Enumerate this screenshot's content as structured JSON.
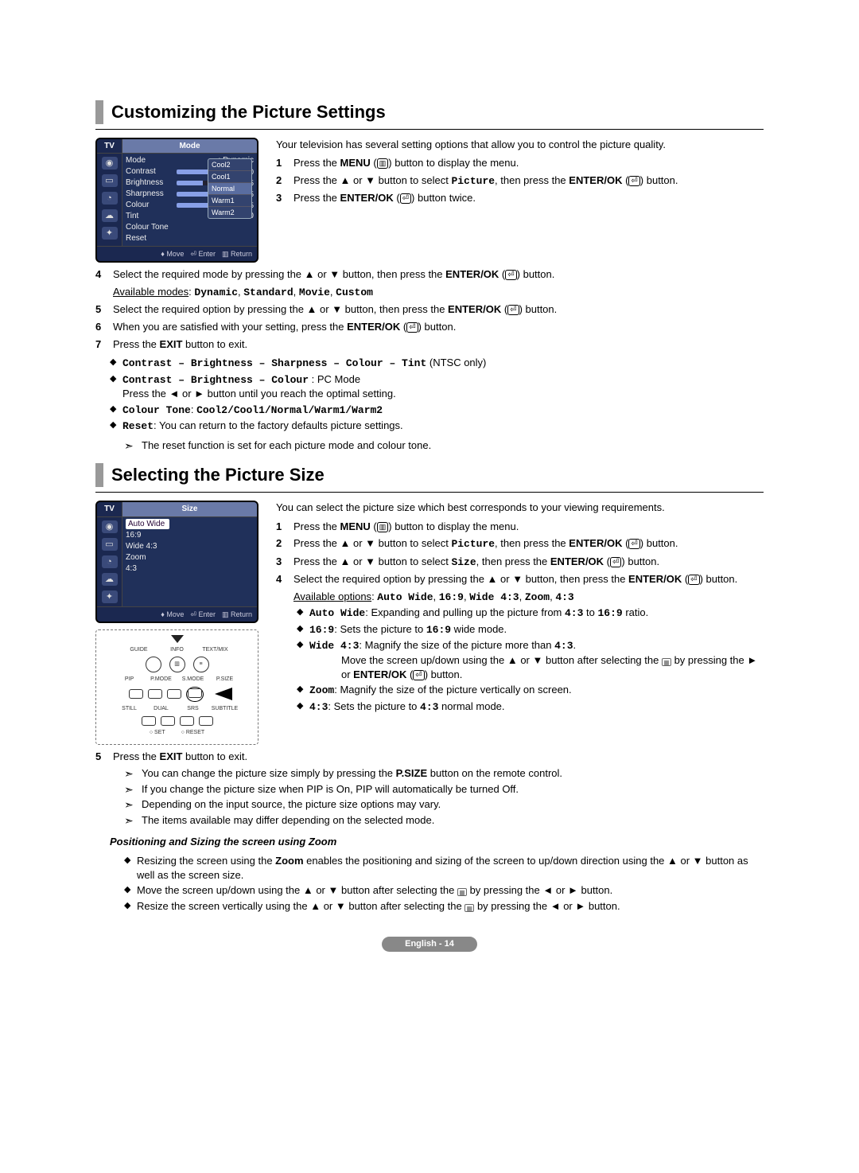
{
  "section1": {
    "title": "Customizing the Picture Settings",
    "intro": "Your television has several setting options that allow you to control the picture quality.",
    "osd": {
      "tab": "TV",
      "title": "Mode",
      "rows": [
        {
          "label": "Mode",
          "value": ": Dynamic"
        },
        {
          "label": "Contrast",
          "bar": 100,
          "num": "100"
        },
        {
          "label": "Brightness",
          "bar": 45,
          "num": "45"
        },
        {
          "label": "Sharpness",
          "bar": 75,
          "num": "75"
        },
        {
          "label": "Colour",
          "bar": 55,
          "num": "55"
        },
        {
          "label": "Tint",
          "value": "G 50",
          "num": "R 50",
          "noBar": true
        },
        {
          "label": "Colour Tone",
          "value": ""
        },
        {
          "label": "Reset",
          "value": ""
        }
      ],
      "dropdown": [
        "Cool2",
        "Cool1",
        "Normal",
        "Warm1",
        "Warm2"
      ],
      "foot": {
        "move": "Move",
        "enter": "Enter",
        "return": "Return"
      }
    },
    "steps_right": [
      {
        "n": "1",
        "html": "Press the <b>MENU</b> (<span class='icon-btn'>▥</span>) button to display the menu."
      },
      {
        "n": "2",
        "html": "Press the ▲ or ▼ button to select <span class='mono'>Picture</span>, then press the <b>ENTER/OK</b> (<span class='icon-enter'>⏎</span>) button."
      },
      {
        "n": "3",
        "html": "Press the <b>ENTER/OK</b> (<span class='icon-enter'>⏎</span>) button twice."
      }
    ],
    "steps_full": [
      {
        "n": "4",
        "html": "Select the required mode by pressing the ▲ or ▼ button, then press the <b>ENTER/OK</b> (<span class='icon-enter'>⏎</span>) button."
      },
      {
        "n": "",
        "html": "<span class='u'>Available modes</span>: <span class='mono'>Dynamic</span>, <span class='mono'>Standard</span>, <span class='mono'>Movie</span>, <span class='mono'>Custom</span>"
      },
      {
        "n": "5",
        "html": "Select the required option by pressing the ▲ or ▼ button, then press the <b>ENTER/OK</b> (<span class='icon-enter'>⏎</span>) button."
      },
      {
        "n": "6",
        "html": "When you are satisfied with your setting, press the <b>ENTER/OK</b> (<span class='icon-enter'>⏎</span>) button."
      },
      {
        "n": "7",
        "html": "Press the <b>EXIT</b> button to exit."
      }
    ],
    "bullets": [
      "<span class='mono'>Contrast – Brightness – Sharpness – Colour – Tint</span> (NTSC only)",
      "<span class='mono'>Contrast – Brightness  – Colour</span> : PC Mode<br>Press the ◄ or ► button until you reach the optimal setting.",
      "<span class='mono'>Colour Tone</span>: <span class='mono'>Cool2/Cool1/Normal/Warm1/Warm2</span>",
      "<span class='mono'>Reset</span>: You can return to the factory defaults picture settings."
    ],
    "note": "The reset function is set for each picture mode and colour tone."
  },
  "section2": {
    "title": "Selecting the Picture Size",
    "intro": "You can select the picture size which best corresponds to your viewing requirements.",
    "osd": {
      "tab": "TV",
      "title": "Size",
      "items": [
        "Auto Wide",
        "16:9",
        "Wide 4:3",
        "Zoom",
        "4:3"
      ],
      "selected": "Auto Wide",
      "foot": {
        "move": "Move",
        "enter": "Enter",
        "return": "Return"
      }
    },
    "remote_labels": {
      "top": [
        "GUIDE",
        "INFO",
        "TEXT/MIX"
      ],
      "mid": [
        "PIP",
        "P.MODE",
        "S.MODE",
        "P.SIZE"
      ],
      "mid2": [
        "STILL",
        "DUAL",
        "SRS",
        "SUBTITLE"
      ],
      "bottom": [
        "SET",
        "RESET"
      ]
    },
    "steps_right": [
      {
        "n": "1",
        "html": "Press the <b>MENU</b> (<span class='icon-btn'>▥</span>) button to display the menu."
      },
      {
        "n": "2",
        "html": "Press the ▲ or ▼ button to select <span class='mono'>Picture</span>, then press the <b>ENTER/OK</b> (<span class='icon-enter'>⏎</span>) button."
      },
      {
        "n": "3",
        "html": "Press the ▲ or ▼ button to select <span class='mono'>Size</span>, then press the <b>ENTER/OK</b> (<span class='icon-enter'>⏎</span>) button."
      },
      {
        "n": "4",
        "html": "Select the required option by pressing the ▲ or ▼ button, then press the <b>ENTER/OK</b> (<span class='icon-enter'>⏎</span>) button."
      }
    ],
    "avail_line": "<span class='u'>Available options</span>: <span class='mono'>Auto Wide</span>, <span class='mono'>16:9</span>, <span class='mono'>Wide 4:3</span>, <span class='mono'>Zoom</span>, <span class='mono'>4:3</span>",
    "option_bullets": [
      "<span class='mono'>Auto Wide</span>: Expanding and pulling up the picture from <span class='mono'>4:3</span> to <span class='mono'>16:9</span> ratio.",
      "<span class='mono'>16:9</span>: Sets the picture to <span class='mono'>16:9</span> wide mode.",
      "<span class='mono'>Wide 4:3</span>: Magnify the size of the picture more than <span class='mono'>4:3</span>.<br><span class='indent'>Move the screen up/down using the ▲ or ▼ button after selecting the <span class='small-icon'>▦</span> by pressing the ► or <b>ENTER/OK</b> (<span class='icon-enter'>⏎</span>) button.</span>",
      "<span class='mono'>Zoom</span>: Magnify the size of the picture vertically on screen.",
      "<span class='mono'>4:3</span>: Sets the picture to <span class='mono'>4:3</span> normal mode."
    ],
    "step5": "Press the <b>EXIT</b> button to exit.",
    "notes": [
      "You can change the picture size simply by pressing the <b>P.SIZE</b> button on the remote control.",
      "If you change the picture size when PIP is On, PIP will automatically be turned Off.",
      "Depending on the input source, the picture size options may vary.",
      "The items available may differ depending on the selected mode."
    ],
    "zoom_title": "Positioning and Sizing the screen using Zoom",
    "zoom_bullets": [
      "Resizing the screen using the <b>Zoom</b> enables the positioning and sizing of the screen to up/down direction using the ▲ or ▼ button as well as the screen size.",
      "Move the screen up/down using the ▲ or ▼ button after selecting the <span class='small-icon'>▦</span> by pressing the ◄ or ► button.",
      "Resize the screen vertically using the ▲ or ▼ button after selecting the <span class='small-icon'>▦</span> by pressing the ◄ or ► button."
    ]
  },
  "footer": "English - 14"
}
